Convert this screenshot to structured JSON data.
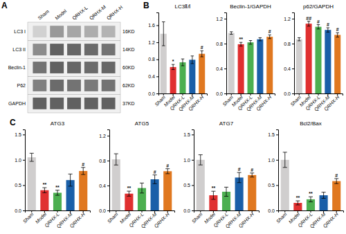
{
  "chart_data": [
    {
      "type": "heatmap",
      "categories": [
        "Sham",
        "Model",
        "QRHX-L",
        "QRHX-M",
        "QRHX-H"
      ],
      "series": [
        {
          "name": "LC3 I",
          "label": "16KD",
          "values": [
            0.82,
            0.6,
            0.65,
            0.68,
            0.7
          ]
        },
        {
          "name": "LC3 II",
          "label": "14KD",
          "values": [
            0.55,
            0.38,
            0.4,
            0.42,
            0.45
          ]
        },
        {
          "name": "Beclin-1",
          "label": "60KD",
          "values": [
            0.45,
            0.38,
            0.4,
            0.42,
            0.4
          ]
        },
        {
          "name": "P62",
          "label": "62KD",
          "values": [
            0.5,
            0.42,
            0.45,
            0.48,
            0.45
          ]
        },
        {
          "name": "GAPDH",
          "label": "37KD",
          "values": [
            0.38,
            0.38,
            0.38,
            0.38,
            0.38
          ]
        }
      ],
      "annotations": [
        {
          "text": "A"
        }
      ]
    },
    {
      "type": "bar",
      "title": "LC3Ⅱ/Ⅰ",
      "categories": [
        "Sham",
        "Model",
        "QRHX-L",
        "QRHX-M",
        "QRHX-H"
      ],
      "values": [
        1.4,
        0.62,
        0.73,
        0.79,
        0.93
      ],
      "errors": [
        0.28,
        0.06,
        0.08,
        0.09,
        0.07
      ],
      "colors": [
        "#d0cece",
        "#e03030",
        "#4caf50",
        "#1a5fa8",
        "#e07820"
      ],
      "ylim": [
        0.0,
        1.9
      ],
      "yticks": [
        {
          "value": 0.0,
          "label": "0.0"
        },
        0.4,
        0.8,
        1.2,
        1.6
      ],
      "annotations": [
        {
          "text": "B"
        },
        {
          "x": "Model",
          "text": "*"
        },
        {
          "x": "QRHX-H",
          "text": "#"
        }
      ]
    },
    {
      "type": "bar",
      "title": "Beclin-1/GAPDH",
      "categories": [
        "Sham",
        "Model",
        "QRHX-L",
        "QRHX-M",
        "QRHX-H"
      ],
      "values": [
        0.97,
        0.79,
        0.82,
        0.87,
        0.91
      ],
      "errors": [
        0.02,
        0.03,
        0.03,
        0.025,
        0.03
      ],
      "colors": [
        "#d0cece",
        "#e03030",
        "#4caf50",
        "#1a5fa8",
        "#e07820"
      ],
      "ylim": [
        0.0,
        1.3
      ],
      "yticks": [
        {
          "value": 0.0,
          "label": "0.0"
        },
        0.4,
        0.8,
        1.2
      ],
      "annotations": [
        {
          "x": "Model",
          "text": "**"
        },
        {
          "x": "QRHX-H",
          "text": "#"
        }
      ]
    },
    {
      "type": "bar",
      "title": "p62/GAPDH",
      "categories": [
        "Sham",
        "Model",
        "QRHX-L",
        "QRHX-M",
        "QRHX-H"
      ],
      "values": [
        0.87,
        1.12,
        1.07,
        1.02,
        0.94
      ],
      "errors": [
        0.025,
        0.04,
        0.035,
        0.035,
        0.035
      ],
      "colors": [
        "#d0cece",
        "#e03030",
        "#4caf50",
        "#1a5fa8",
        "#e07820"
      ],
      "ylim": [
        0.0,
        1.3
      ],
      "yticks": [
        {
          "value": 0.0,
          "label": "0.0"
        },
        0.4,
        0.8,
        1.2
      ],
      "annotations": [
        {
          "x": "Model",
          "text": "##"
        },
        {
          "x": "QRHX-L",
          "text": "#"
        },
        {
          "x": "QRHX-M",
          "text": "#"
        },
        {
          "x": "QRHX-H",
          "text": "#"
        }
      ]
    },
    {
      "type": "bar",
      "title": "ATG3",
      "categories": [
        "Sham",
        "Model",
        "QRHX-L",
        "QRHX-M",
        "QRHX-H"
      ],
      "values": [
        1.05,
        0.4,
        0.35,
        0.6,
        0.78
      ],
      "errors": [
        0.08,
        0.05,
        0.05,
        0.12,
        0.07
      ],
      "colors": [
        "#d0cece",
        "#e03030",
        "#4caf50",
        "#1a5fa8",
        "#e07820"
      ],
      "ylim": [
        0.0,
        1.6
      ],
      "yticks": [
        {
          "value": 0.0,
          "label": "0.0"
        },
        0.5,
        {
          "value": 1.0,
          "label": "1.0"
        },
        1.5
      ],
      "annotations": [
        {
          "text": "C"
        },
        {
          "x": "Model",
          "text": "**"
        },
        {
          "x": "QRHX-L",
          "text": "**"
        },
        {
          "x": "QRHX-H",
          "text": "#"
        }
      ]
    },
    {
      "type": "bar",
      "title": "ATG5",
      "categories": [
        "Sham",
        "Model",
        "QRHX-L",
        "QRHX-M",
        "QRHX-H"
      ],
      "values": [
        0.82,
        0.27,
        0.36,
        0.5,
        0.63
      ],
      "errors": [
        0.09,
        0.04,
        0.08,
        0.07,
        0.04
      ],
      "colors": [
        "#d0cece",
        "#e03030",
        "#4caf50",
        "#1a5fa8",
        "#e07820"
      ],
      "ylim": [
        0.0,
        1.3
      ],
      "yticks": [
        {
          "value": 0.0,
          "label": "0.0"
        },
        0.4,
        0.8,
        1.2
      ],
      "annotations": [
        {
          "x": "Model",
          "text": "**"
        },
        {
          "x": "QRHX-M",
          "text": "#"
        },
        {
          "x": "QRHX-H",
          "text": "#"
        }
      ]
    },
    {
      "type": "bar",
      "title": "ATG7",
      "categories": [
        "Sham",
        "Model",
        "QRHX-L",
        "QRHX-M",
        "QRHX-H"
      ],
      "values": [
        1.0,
        0.3,
        0.37,
        0.65,
        0.7
      ],
      "errors": [
        0.1,
        0.08,
        0.09,
        0.1,
        0.04
      ],
      "colors": [
        "#d0cece",
        "#e03030",
        "#4caf50",
        "#1a5fa8",
        "#e07820"
      ],
      "ylim": [
        0.0,
        1.6
      ],
      "yticks": [
        {
          "value": 0.0,
          "label": "0.0"
        },
        0.5,
        {
          "value": 1.0,
          "label": "1.0"
        },
        1.5
      ],
      "annotations": [
        {
          "x": "Model",
          "text": "**"
        },
        {
          "x": "QRHX-M",
          "text": "#"
        },
        {
          "x": "QRHX-H",
          "text": "#"
        }
      ]
    },
    {
      "type": "bar",
      "title": "Bcl2/Bax",
      "categories": [
        "Sham",
        "Model",
        "QRHX-L",
        "QRHX-M",
        "QRHX-H"
      ],
      "values": [
        1.0,
        0.15,
        0.22,
        0.3,
        0.58
      ],
      "errors": [
        0.15,
        0.04,
        0.05,
        0.06,
        0.05
      ],
      "colors": [
        "#d0cece",
        "#e03030",
        "#4caf50",
        "#1a5fa8",
        "#e07820"
      ],
      "ylim": [
        0.0,
        1.6
      ],
      "yticks": [
        {
          "value": 0.0,
          "label": "0.0"
        },
        0.5,
        {
          "value": 1.0,
          "label": "1.0"
        },
        1.5
      ],
      "annotations": [
        {
          "x": "Model",
          "text": "**"
        },
        {
          "x": "QRHX-L",
          "text": "**"
        },
        {
          "x": "QRHX-H",
          "text": "#"
        }
      ]
    }
  ]
}
